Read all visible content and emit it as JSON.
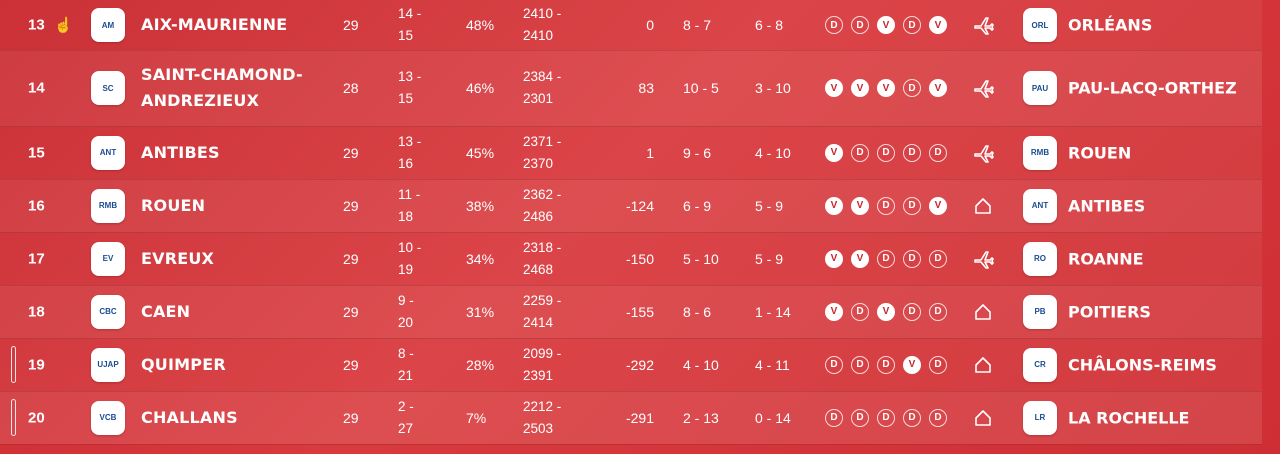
{
  "rows": [
    {
      "rank": "13",
      "name_lines": [
        "AIX-MAURIENNE"
      ],
      "logo": "AM",
      "played": "29",
      "wl": [
        "14 -",
        "15"
      ],
      "pct": "48%",
      "pts": [
        "2410 -",
        "2410"
      ],
      "diff": "0",
      "home": "8 - 7",
      "away": "6 - 8",
      "form": [
        "D",
        "D",
        "V",
        "D",
        "V"
      ],
      "venue": "away-plane-icon",
      "next_logo": "ORL",
      "next": "ORLÉANS",
      "cursor": true,
      "marker": false
    },
    {
      "rank": "14",
      "name_lines": [
        "SAINT-CHAMOND-",
        "ANDREZIEUX"
      ],
      "logo": "SC",
      "played": "28",
      "wl": [
        "13 -",
        "15"
      ],
      "pct": "46%",
      "pts": [
        "2384 -",
        "2301"
      ],
      "diff": "83",
      "home": "10 - 5",
      "away": "3 - 10",
      "form": [
        "V",
        "V",
        "V",
        "D",
        "V"
      ],
      "venue": "away-plane-icon",
      "next_logo": "PAU",
      "next": "PAU-LACQ-ORTHEZ",
      "cursor": false,
      "marker": false
    },
    {
      "rank": "15",
      "name_lines": [
        "ANTIBES"
      ],
      "logo": "ANT",
      "played": "29",
      "wl": [
        "13 -",
        "16"
      ],
      "pct": "45%",
      "pts": [
        "2371 -",
        "2370"
      ],
      "diff": "1",
      "home": "9 - 6",
      "away": "4 - 10",
      "form": [
        "V",
        "D",
        "D",
        "D",
        "D"
      ],
      "venue": "away-plane-icon",
      "next_logo": "RMB",
      "next": "ROUEN",
      "cursor": false,
      "marker": false
    },
    {
      "rank": "16",
      "name_lines": [
        "ROUEN"
      ],
      "logo": "RMB",
      "played": "29",
      "wl": [
        "11 -",
        "18"
      ],
      "pct": "38%",
      "pts": [
        "2362 -",
        "2486"
      ],
      "diff": "-124",
      "home": "6 - 9",
      "away": "5 - 9",
      "form": [
        "V",
        "V",
        "D",
        "D",
        "V"
      ],
      "venue": "home-house-icon",
      "next_logo": "ANT",
      "next": "ANTIBES",
      "cursor": false,
      "marker": false
    },
    {
      "rank": "17",
      "name_lines": [
        "EVREUX"
      ],
      "logo": "EV",
      "played": "29",
      "wl": [
        "10 -",
        "19"
      ],
      "pct": "34%",
      "pts": [
        "2318 -",
        "2468"
      ],
      "diff": "-150",
      "home": "5 - 10",
      "away": "5 - 9",
      "form": [
        "V",
        "V",
        "D",
        "D",
        "D"
      ],
      "venue": "away-plane-icon",
      "next_logo": "RO",
      "next": "ROANNE",
      "cursor": false,
      "marker": false
    },
    {
      "rank": "18",
      "name_lines": [
        "CAEN"
      ],
      "logo": "CBC",
      "played": "29",
      "wl": [
        "9 -",
        "20"
      ],
      "pct": "31%",
      "pts": [
        "2259 -",
        "2414"
      ],
      "diff": "-155",
      "home": "8 - 6",
      "away": "1 - 14",
      "form": [
        "V",
        "D",
        "V",
        "D",
        "D"
      ],
      "venue": "home-house-icon",
      "next_logo": "PB",
      "next": "POITIERS",
      "cursor": false,
      "marker": false
    },
    {
      "rank": "19",
      "name_lines": [
        "QUIMPER"
      ],
      "logo": "UJAP",
      "played": "29",
      "wl": [
        "8 -",
        "21"
      ],
      "pct": "28%",
      "pts": [
        "2099 -",
        "2391"
      ],
      "diff": "-292",
      "home": "4 - 10",
      "away": "4 - 11",
      "form": [
        "D",
        "D",
        "D",
        "V",
        "D"
      ],
      "venue": "home-house-icon",
      "next_logo": "CR",
      "next": "CHÂLONS-REIMS",
      "cursor": false,
      "marker": true
    },
    {
      "rank": "20",
      "name_lines": [
        "CHALLANS"
      ],
      "logo": "VCB",
      "played": "29",
      "wl": [
        "2 -",
        "27"
      ],
      "pct": "7%",
      "pts": [
        "2212 -",
        "2503"
      ],
      "diff": "-291",
      "home": "2 - 13",
      "away": "0 - 14",
      "form": [
        "D",
        "D",
        "D",
        "D",
        "D"
      ],
      "venue": "home-house-icon",
      "next_logo": "LR",
      "next": "LA ROCHELLE",
      "cursor": false,
      "marker": true
    }
  ]
}
